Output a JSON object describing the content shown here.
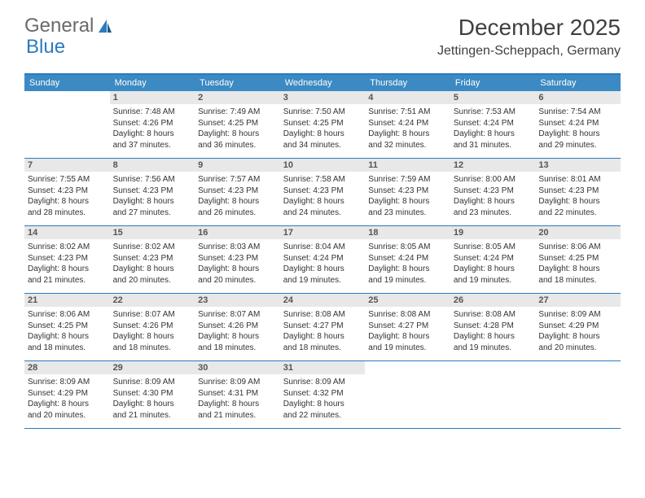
{
  "logo": {
    "part1": "General",
    "part2": "Blue"
  },
  "title": "December 2025",
  "location": "Jettingen-Scheppach, Germany",
  "colors": {
    "header_bar": "#3b8ac4",
    "border": "#2b7bbf",
    "daynum_bg": "#e8e8e8",
    "text": "#333333",
    "title_text": "#404040"
  },
  "days_of_week": [
    "Sunday",
    "Monday",
    "Tuesday",
    "Wednesday",
    "Thursday",
    "Friday",
    "Saturday"
  ],
  "weeks": [
    [
      null,
      {
        "n": "1",
        "sr": "Sunrise: 7:48 AM",
        "ss": "Sunset: 4:26 PM",
        "d1": "Daylight: 8 hours",
        "d2": "and 37 minutes."
      },
      {
        "n": "2",
        "sr": "Sunrise: 7:49 AM",
        "ss": "Sunset: 4:25 PM",
        "d1": "Daylight: 8 hours",
        "d2": "and 36 minutes."
      },
      {
        "n": "3",
        "sr": "Sunrise: 7:50 AM",
        "ss": "Sunset: 4:25 PM",
        "d1": "Daylight: 8 hours",
        "d2": "and 34 minutes."
      },
      {
        "n": "4",
        "sr": "Sunrise: 7:51 AM",
        "ss": "Sunset: 4:24 PM",
        "d1": "Daylight: 8 hours",
        "d2": "and 32 minutes."
      },
      {
        "n": "5",
        "sr": "Sunrise: 7:53 AM",
        "ss": "Sunset: 4:24 PM",
        "d1": "Daylight: 8 hours",
        "d2": "and 31 minutes."
      },
      {
        "n": "6",
        "sr": "Sunrise: 7:54 AM",
        "ss": "Sunset: 4:24 PM",
        "d1": "Daylight: 8 hours",
        "d2": "and 29 minutes."
      }
    ],
    [
      {
        "n": "7",
        "sr": "Sunrise: 7:55 AM",
        "ss": "Sunset: 4:23 PM",
        "d1": "Daylight: 8 hours",
        "d2": "and 28 minutes."
      },
      {
        "n": "8",
        "sr": "Sunrise: 7:56 AM",
        "ss": "Sunset: 4:23 PM",
        "d1": "Daylight: 8 hours",
        "d2": "and 27 minutes."
      },
      {
        "n": "9",
        "sr": "Sunrise: 7:57 AM",
        "ss": "Sunset: 4:23 PM",
        "d1": "Daylight: 8 hours",
        "d2": "and 26 minutes."
      },
      {
        "n": "10",
        "sr": "Sunrise: 7:58 AM",
        "ss": "Sunset: 4:23 PM",
        "d1": "Daylight: 8 hours",
        "d2": "and 24 minutes."
      },
      {
        "n": "11",
        "sr": "Sunrise: 7:59 AM",
        "ss": "Sunset: 4:23 PM",
        "d1": "Daylight: 8 hours",
        "d2": "and 23 minutes."
      },
      {
        "n": "12",
        "sr": "Sunrise: 8:00 AM",
        "ss": "Sunset: 4:23 PM",
        "d1": "Daylight: 8 hours",
        "d2": "and 23 minutes."
      },
      {
        "n": "13",
        "sr": "Sunrise: 8:01 AM",
        "ss": "Sunset: 4:23 PM",
        "d1": "Daylight: 8 hours",
        "d2": "and 22 minutes."
      }
    ],
    [
      {
        "n": "14",
        "sr": "Sunrise: 8:02 AM",
        "ss": "Sunset: 4:23 PM",
        "d1": "Daylight: 8 hours",
        "d2": "and 21 minutes."
      },
      {
        "n": "15",
        "sr": "Sunrise: 8:02 AM",
        "ss": "Sunset: 4:23 PM",
        "d1": "Daylight: 8 hours",
        "d2": "and 20 minutes."
      },
      {
        "n": "16",
        "sr": "Sunrise: 8:03 AM",
        "ss": "Sunset: 4:23 PM",
        "d1": "Daylight: 8 hours",
        "d2": "and 20 minutes."
      },
      {
        "n": "17",
        "sr": "Sunrise: 8:04 AM",
        "ss": "Sunset: 4:24 PM",
        "d1": "Daylight: 8 hours",
        "d2": "and 19 minutes."
      },
      {
        "n": "18",
        "sr": "Sunrise: 8:05 AM",
        "ss": "Sunset: 4:24 PM",
        "d1": "Daylight: 8 hours",
        "d2": "and 19 minutes."
      },
      {
        "n": "19",
        "sr": "Sunrise: 8:05 AM",
        "ss": "Sunset: 4:24 PM",
        "d1": "Daylight: 8 hours",
        "d2": "and 19 minutes."
      },
      {
        "n": "20",
        "sr": "Sunrise: 8:06 AM",
        "ss": "Sunset: 4:25 PM",
        "d1": "Daylight: 8 hours",
        "d2": "and 18 minutes."
      }
    ],
    [
      {
        "n": "21",
        "sr": "Sunrise: 8:06 AM",
        "ss": "Sunset: 4:25 PM",
        "d1": "Daylight: 8 hours",
        "d2": "and 18 minutes."
      },
      {
        "n": "22",
        "sr": "Sunrise: 8:07 AM",
        "ss": "Sunset: 4:26 PM",
        "d1": "Daylight: 8 hours",
        "d2": "and 18 minutes."
      },
      {
        "n": "23",
        "sr": "Sunrise: 8:07 AM",
        "ss": "Sunset: 4:26 PM",
        "d1": "Daylight: 8 hours",
        "d2": "and 18 minutes."
      },
      {
        "n": "24",
        "sr": "Sunrise: 8:08 AM",
        "ss": "Sunset: 4:27 PM",
        "d1": "Daylight: 8 hours",
        "d2": "and 18 minutes."
      },
      {
        "n": "25",
        "sr": "Sunrise: 8:08 AM",
        "ss": "Sunset: 4:27 PM",
        "d1": "Daylight: 8 hours",
        "d2": "and 19 minutes."
      },
      {
        "n": "26",
        "sr": "Sunrise: 8:08 AM",
        "ss": "Sunset: 4:28 PM",
        "d1": "Daylight: 8 hours",
        "d2": "and 19 minutes."
      },
      {
        "n": "27",
        "sr": "Sunrise: 8:09 AM",
        "ss": "Sunset: 4:29 PM",
        "d1": "Daylight: 8 hours",
        "d2": "and 20 minutes."
      }
    ],
    [
      {
        "n": "28",
        "sr": "Sunrise: 8:09 AM",
        "ss": "Sunset: 4:29 PM",
        "d1": "Daylight: 8 hours",
        "d2": "and 20 minutes."
      },
      {
        "n": "29",
        "sr": "Sunrise: 8:09 AM",
        "ss": "Sunset: 4:30 PM",
        "d1": "Daylight: 8 hours",
        "d2": "and 21 minutes."
      },
      {
        "n": "30",
        "sr": "Sunrise: 8:09 AM",
        "ss": "Sunset: 4:31 PM",
        "d1": "Daylight: 8 hours",
        "d2": "and 21 minutes."
      },
      {
        "n": "31",
        "sr": "Sunrise: 8:09 AM",
        "ss": "Sunset: 4:32 PM",
        "d1": "Daylight: 8 hours",
        "d2": "and 22 minutes."
      },
      null,
      null,
      null
    ]
  ]
}
